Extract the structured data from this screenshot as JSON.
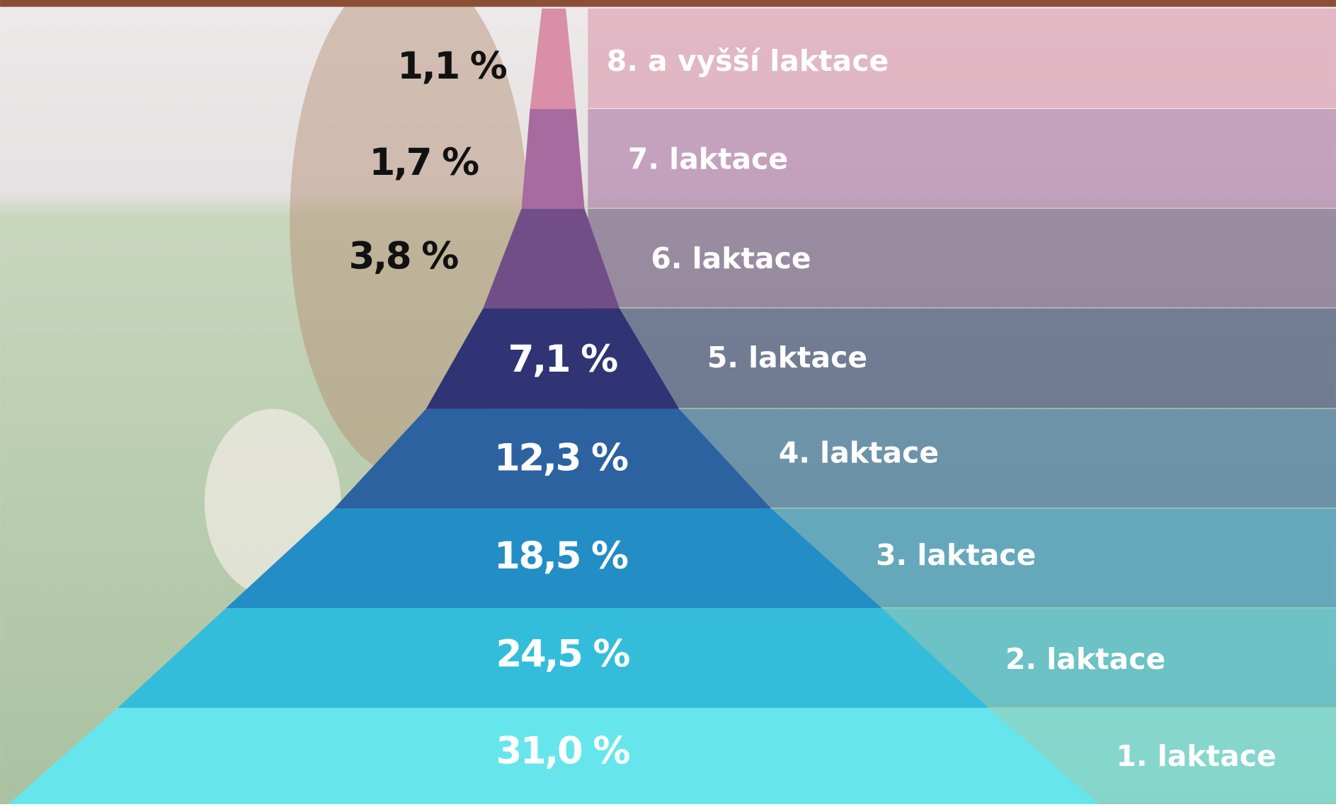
{
  "chart_data": {
    "type": "pyramid",
    "categories": [
      "8. a vyšší laktace",
      "7. laktace",
      "6. laktace",
      "5. laktace",
      "4. laktace",
      "3. laktace",
      "2. laktace",
      "1. laktace"
    ],
    "values": [
      1.1,
      1.7,
      3.8,
      7.1,
      12.3,
      18.5,
      24.5,
      31.0
    ],
    "value_labels": [
      "1,1 %",
      "1,7 %",
      "3,8 %",
      "7,1 %",
      "12,3 %",
      "18,5 %",
      "24,5 %",
      "31,0 %"
    ],
    "colors": [
      "#d98fa8",
      "#a86b9f",
      "#724e88",
      "#303474",
      "#2c62a0",
      "#238dc6",
      "#33bddb",
      "#66e6ec"
    ]
  }
}
